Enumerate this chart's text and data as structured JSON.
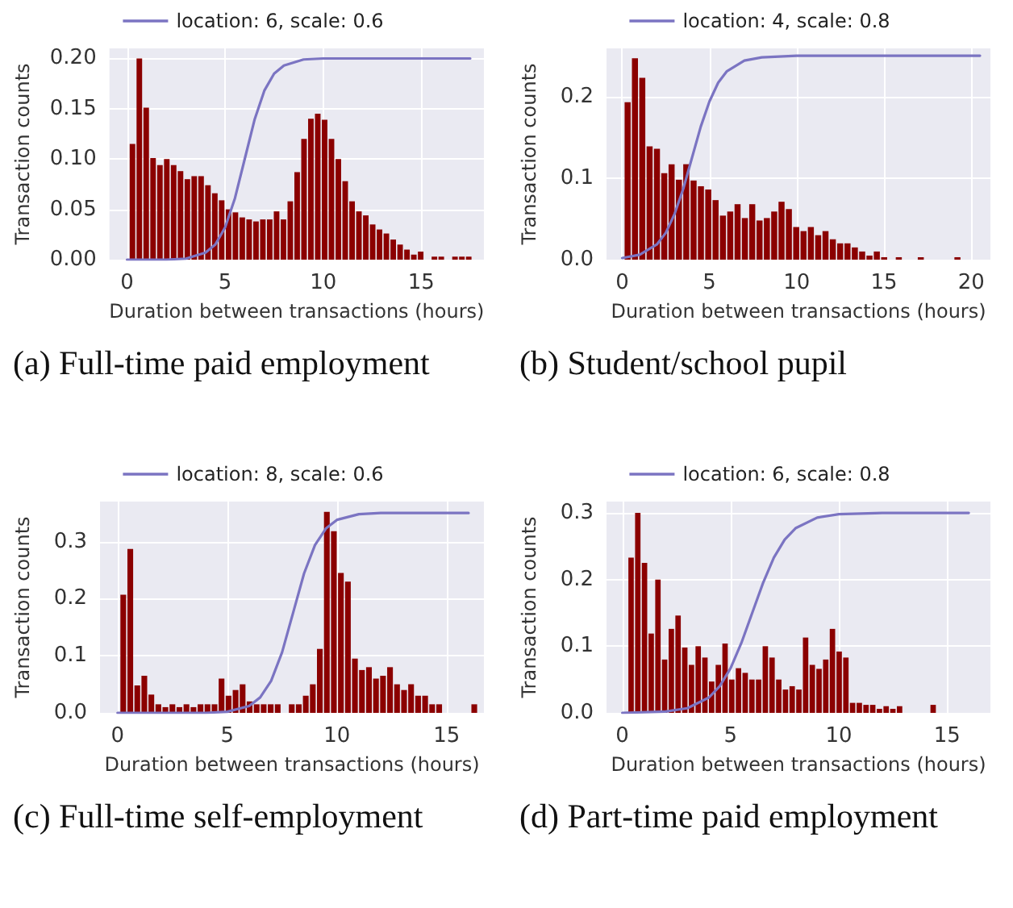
{
  "chart_data": [
    {
      "type": "histogram",
      "xlabel": "Duration between transactions (hours)",
      "ylabel": "Transaction counts",
      "xlim": [
        -0.9,
        18.2
      ],
      "xticks": [
        0,
        5,
        10,
        15
      ],
      "ylim": [
        0,
        0.21
      ],
      "yticks": [
        {
          "value": 0,
          "label": "0.00"
        },
        {
          "value": 0.05,
          "label": "0.05"
        },
        {
          "value": 0.1,
          "label": "0.10"
        },
        {
          "value": 0.15,
          "label": "0.15"
        },
        {
          "value": 0.2,
          "label": "0.20"
        }
      ],
      "grid": true,
      "legend": "top",
      "annotations": [
        "(a) Full-time paid employment"
      ],
      "series": [
        {
          "color": "#8b0000",
          "bins": [
            0.1,
            0.45,
            0.8,
            1.15,
            1.5,
            1.85,
            2.2,
            2.55,
            2.9,
            3.25,
            3.6,
            3.95,
            4.3,
            4.65,
            5,
            5.35,
            5.7,
            6.05,
            6.4,
            6.75,
            7.1,
            7.45,
            7.8,
            8.15,
            8.5,
            8.85,
            9.2,
            9.55,
            9.9,
            10.25,
            10.6,
            10.95,
            11.3,
            11.65,
            12,
            12.35,
            12.7,
            13.05,
            13.4,
            13.75,
            14.1,
            14.45,
            14.8,
            15.15,
            15.5,
            15.85,
            16.2,
            16.55,
            16.9,
            17.25,
            17.6
          ],
          "values": [
            0.115,
            0.2,
            0.151,
            0.101,
            0.094,
            0.1,
            0.094,
            0.088,
            0.08,
            0.083,
            0.083,
            0.074,
            0.066,
            0.059,
            0.05,
            0.047,
            0.042,
            0.04,
            0.038,
            0.04,
            0.04,
            0.048,
            0.04,
            0.058,
            0.087,
            0.12,
            0.14,
            0.145,
            0.139,
            0.12,
            0.1,
            0.078,
            0.058,
            0.048,
            0.044,
            0.035,
            0.03,
            0.026,
            0.02,
            0.015,
            0.01,
            0.005,
            0.008,
            0,
            0.003,
            0.003,
            0,
            0.003,
            0.003,
            0.003
          ]
        },
        {
          "type": "line",
          "name": "location: 6, scale: 0.6",
          "color": "#7b74c2",
          "x": [
            0,
            2,
            3,
            4,
            4.5,
            5,
            5.5,
            6,
            6.5,
            7,
            7.5,
            8,
            9,
            10,
            12,
            17.5
          ],
          "values": [
            0,
            0,
            0.001,
            0.007,
            0.015,
            0.032,
            0.061,
            0.1,
            0.139,
            0.168,
            0.185,
            0.193,
            0.199,
            0.2,
            0.2,
            0.2
          ]
        }
      ]
    },
    {
      "type": "histogram",
      "xlabel": "Duration between transactions (hours)",
      "ylabel": "Transaction counts",
      "xlim": [
        -0.9,
        21.1
      ],
      "xticks": [
        0,
        5,
        10,
        15,
        20
      ],
      "ylim": [
        0,
        0.259
      ],
      "yticks": [
        {
          "value": 0,
          "label": "0.0"
        },
        {
          "value": 0.1,
          "label": "0.1"
        },
        {
          "value": 0.2,
          "label": "0.2"
        }
      ],
      "grid": true,
      "legend": "top",
      "annotations": [
        "(b) Student/school pupil"
      ],
      "series": [
        {
          "color": "#8b0000",
          "bins": [
            0.1,
            0.52,
            0.94,
            1.36,
            1.78,
            2.2,
            2.62,
            3.04,
            3.46,
            3.88,
            4.3,
            4.72,
            5.14,
            5.56,
            5.98,
            6.4,
            6.82,
            7.24,
            7.66,
            8.08,
            8.5,
            8.92,
            9.34,
            9.76,
            10.18,
            10.6,
            11.02,
            11.44,
            11.86,
            12.28,
            12.7,
            13.12,
            13.54,
            13.96,
            14.38,
            14.8,
            15.22,
            15.64,
            16.06,
            16.48,
            16.9,
            17.32,
            17.74,
            18.16,
            18.58,
            19,
            19.42
          ],
          "values": [
            0.193,
            0.247,
            0.223,
            0.139,
            0.136,
            0.106,
            0.117,
            0.098,
            0.117,
            0.097,
            0.09,
            0.086,
            0.073,
            0.054,
            0.059,
            0.068,
            0.051,
            0.068,
            0.048,
            0.051,
            0.059,
            0.071,
            0.062,
            0.04,
            0.035,
            0.04,
            0.03,
            0.035,
            0.025,
            0.02,
            0.02,
            0.015,
            0.01,
            0.005,
            0.01,
            0.003,
            0,
            0.003,
            0,
            0,
            0.003,
            0,
            0,
            0,
            0,
            0.003
          ]
        },
        {
          "type": "line",
          "name": "location: 4, scale: 0.8",
          "color": "#7b74c2",
          "x": [
            0,
            1,
            2,
            2.5,
            3,
            3.5,
            4,
            4.5,
            5,
            5.5,
            6,
            7,
            8,
            10,
            20.5
          ],
          "values": [
            0.002,
            0.006,
            0.019,
            0.033,
            0.056,
            0.087,
            0.125,
            0.163,
            0.194,
            0.217,
            0.231,
            0.244,
            0.248,
            0.25,
            0.25
          ]
        }
      ]
    },
    {
      "type": "histogram",
      "xlabel": "Duration between transactions (hours)",
      "ylabel": "Transaction counts",
      "xlim": [
        -0.8,
        16.7
      ],
      "xticks": [
        0,
        5,
        10,
        15
      ],
      "ylim": [
        0,
        0.37
      ],
      "yticks": [
        {
          "value": 0,
          "label": "0.0"
        },
        {
          "value": 0.1,
          "label": "0.1"
        },
        {
          "value": 0.2,
          "label": "0.2"
        },
        {
          "value": 0.3,
          "label": "0.3"
        }
      ],
      "grid": true,
      "legend": "top",
      "annotations": [
        "(c) Full-time self-employment"
      ],
      "series": [
        {
          "color": "#8b0000",
          "bins": [
            0.1,
            0.42,
            0.74,
            1.06,
            1.38,
            1.7,
            2.02,
            2.34,
            2.66,
            2.98,
            3.3,
            3.62,
            3.94,
            4.26,
            4.58,
            4.9,
            5.22,
            5.54,
            5.86,
            6.18,
            6.5,
            6.82,
            7.14,
            7.46,
            7.78,
            8.1,
            8.42,
            8.74,
            9.06,
            9.38,
            9.7,
            10.02,
            10.34,
            10.66,
            10.98,
            11.3,
            11.62,
            11.94,
            12.26,
            12.58,
            12.9,
            13.22,
            13.54,
            13.86,
            14.18,
            14.5,
            14.82,
            15.14,
            15.46,
            15.78,
            16.1,
            16.42
          ],
          "values": [
            0.207,
            0.287,
            0.048,
            0.065,
            0.032,
            0.015,
            0.01,
            0.015,
            0.01,
            0.015,
            0.01,
            0.015,
            0.015,
            0.015,
            0.06,
            0.03,
            0.04,
            0.05,
            0.02,
            0.015,
            0.015,
            0.015,
            0.015,
            0,
            0.015,
            0.015,
            0.03,
            0.05,
            0.112,
            0.352,
            0.318,
            0.245,
            0.23,
            0.095,
            0.075,
            0.08,
            0.06,
            0.065,
            0.08,
            0.05,
            0.04,
            0.05,
            0.03,
            0.03,
            0.015,
            0.015,
            0,
            0,
            0,
            0,
            0.015
          ]
        },
        {
          "type": "line",
          "name": "location: 8, scale: 0.6",
          "color": "#7b74c2",
          "x": [
            0,
            4,
            5,
            6,
            6.5,
            7,
            7.5,
            8,
            8.5,
            9,
            9.5,
            10,
            11,
            12,
            16
          ],
          "values": [
            0,
            0,
            0.002,
            0.012,
            0.027,
            0.056,
            0.106,
            0.175,
            0.244,
            0.294,
            0.323,
            0.338,
            0.348,
            0.35,
            0.35
          ]
        }
      ]
    },
    {
      "type": "histogram",
      "xlabel": "Duration between transactions (hours)",
      "ylabel": "Transaction counts",
      "xlim": [
        -0.73,
        17
      ],
      "xticks": [
        0,
        5,
        10,
        15
      ],
      "ylim": [
        0,
        0.317
      ],
      "yticks": [
        {
          "value": 0,
          "label": "0.0"
        },
        {
          "value": 0.1,
          "label": "0.1"
        },
        {
          "value": 0.2,
          "label": "0.2"
        },
        {
          "value": 0.3,
          "label": "0.3"
        }
      ],
      "grid": true,
      "legend": "top",
      "annotations": [
        "(d) Part-time paid employment"
      ],
      "series": [
        {
          "color": "#8b0000",
          "bins": [
            0.25,
            0.56,
            0.87,
            1.18,
            1.49,
            1.8,
            2.11,
            2.42,
            2.73,
            3.04,
            3.35,
            3.66,
            3.97,
            4.28,
            4.59,
            4.9,
            5.21,
            5.52,
            5.83,
            6.14,
            6.45,
            6.76,
            7.07,
            7.38,
            7.69,
            8,
            8.31,
            8.62,
            8.93,
            9.24,
            9.55,
            9.86,
            10.17,
            10.48,
            10.79,
            11.1,
            11.41,
            11.72,
            12.03,
            12.34,
            12.65,
            12.96,
            13.27,
            13.58,
            13.89,
            14.2,
            14.51
          ],
          "values": [
            0.233,
            0.3,
            0.225,
            0.119,
            0.2,
            0.08,
            0.126,
            0.146,
            0.098,
            0.072,
            0.1,
            0.083,
            0.047,
            0.072,
            0.104,
            0.05,
            0.067,
            0.06,
            0.05,
            0.05,
            0.1,
            0.083,
            0.05,
            0.035,
            0.04,
            0.035,
            0.113,
            0.072,
            0.066,
            0.08,
            0.126,
            0.092,
            0.083,
            0.015,
            0.015,
            0.012,
            0.012,
            0.006,
            0.01,
            0.006,
            0.01,
            0,
            0,
            0,
            0,
            0.012
          ]
        },
        {
          "type": "line",
          "name": "location: 6, scale: 0.8",
          "color": "#7b74c2",
          "x": [
            0,
            2,
            3,
            4,
            4.5,
            5,
            5.5,
            6,
            6.5,
            7,
            7.5,
            8,
            9,
            10,
            12,
            16
          ],
          "values": [
            0,
            0.002,
            0.007,
            0.023,
            0.04,
            0.067,
            0.105,
            0.15,
            0.195,
            0.233,
            0.26,
            0.277,
            0.293,
            0.298,
            0.3,
            0.3
          ]
        }
      ]
    }
  ]
}
